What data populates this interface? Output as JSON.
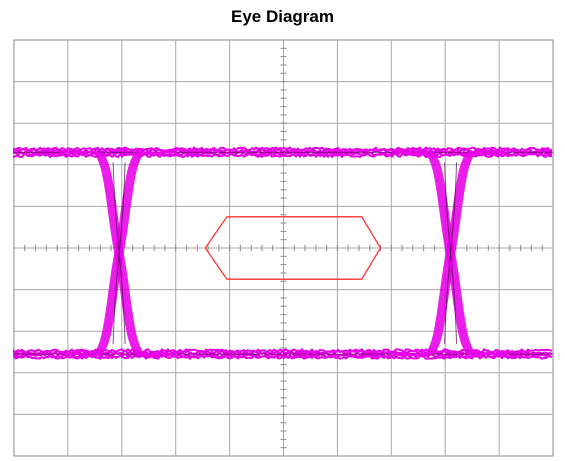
{
  "chart_data": {
    "type": "eye-diagram",
    "title": "Eye Diagram",
    "grid": true,
    "grid_divisions": {
      "horizontal": 10,
      "vertical": 10
    },
    "minor_ticks_per_division": 5,
    "levels": {
      "high": 1,
      "low": 0
    },
    "trace_color": "#e600e6",
    "mask_color": "#ff3333",
    "crossings_div": [
      1.95,
      8.1
    ],
    "eye_mask": {
      "points_div": [
        [
          3.55,
          5.0
        ],
        [
          3.95,
          4.25
        ],
        [
          6.45,
          4.25
        ],
        [
          6.8,
          5.0
        ],
        [
          6.45,
          5.75
        ],
        [
          3.95,
          5.75
        ]
      ]
    }
  }
}
